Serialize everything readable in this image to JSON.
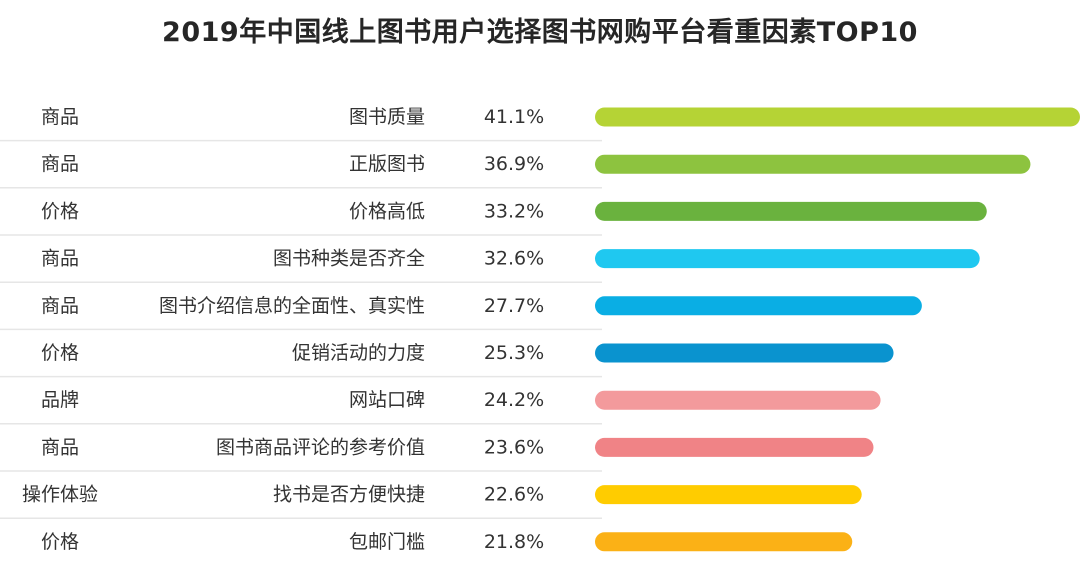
{
  "chart_data": {
    "type": "bar",
    "orientation": "horizontal",
    "title": "2019年中国线上图书用户选择图书网购平台看重因素TOP10",
    "xlim": [
      0,
      41.1
    ],
    "grid": false,
    "legend": "none",
    "rows": [
      {
        "group": "商品",
        "factor": "图书质量",
        "value": 41.1,
        "label": "41.1%",
        "color": "#B5D335"
      },
      {
        "group": "商品",
        "factor": "正版图书",
        "value": 36.9,
        "label": "36.9%",
        "color": "#8DC33F"
      },
      {
        "group": "价格",
        "factor": "价格高低",
        "value": 33.2,
        "label": "33.2%",
        "color": "#6AB23E"
      },
      {
        "group": "商品",
        "factor": "图书种类是否齐全",
        "value": 32.6,
        "label": "32.6%",
        "color": "#1FC8F0"
      },
      {
        "group": "商品",
        "factor": "图书介绍信息的全面性、真实性",
        "value": 27.7,
        "label": "27.7%",
        "color": "#0AAEE4"
      },
      {
        "group": "价格",
        "factor": "促销活动的力度",
        "value": 25.3,
        "label": "25.3%",
        "color": "#0A93CF"
      },
      {
        "group": "品牌",
        "factor": "网站口碑",
        "value": 24.2,
        "label": "24.2%",
        "color": "#F39A9C"
      },
      {
        "group": "商品",
        "factor": "图书商品评论的参考价值",
        "value": 23.6,
        "label": "23.6%",
        "color": "#F08386"
      },
      {
        "group": "操作体验",
        "factor": "找书是否方便快捷",
        "value": 22.6,
        "label": "22.6%",
        "color": "#FFCC00"
      },
      {
        "group": "价格",
        "factor": "包邮门槛",
        "value": 21.8,
        "label": "21.8%",
        "color": "#FBB116"
      }
    ]
  }
}
